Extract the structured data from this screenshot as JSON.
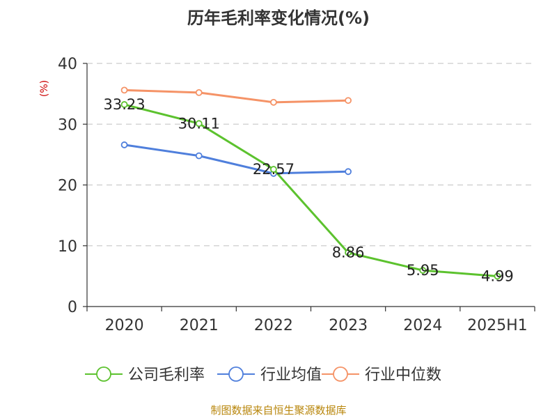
{
  "chart_data": {
    "type": "line",
    "title": "历年毛利率变化情况(%)",
    "ylabel": "(%)",
    "xlabel": "",
    "categories": [
      "2020",
      "2021",
      "2022",
      "2023",
      "2024",
      "2025H1"
    ],
    "ylim": [
      0,
      40
    ],
    "yticks": [
      0,
      10,
      20,
      30,
      40
    ],
    "grid": true,
    "legend_position": "bottom",
    "series": [
      {
        "name": "公司毛利率",
        "color": "#5cc22e",
        "values": [
          33.23,
          30.11,
          22.57,
          8.86,
          5.95,
          4.99
        ],
        "labels": [
          "33.23",
          "30.11",
          "22.57",
          "8.86",
          "5.95",
          "4.99"
        ]
      },
      {
        "name": "行业均值",
        "color": "#4f7fdc",
        "values": [
          26.6,
          24.8,
          21.9,
          22.2,
          null,
          null
        ]
      },
      {
        "name": "行业中位数",
        "color": "#f59367",
        "values": [
          35.6,
          35.2,
          33.6,
          33.9,
          null,
          null
        ]
      }
    ]
  },
  "source": {
    "text": "制图数据来自恒生聚源数据库",
    "color": "#b8860b"
  },
  "colors": {
    "axis": "#333333",
    "grid": "#cccccc",
    "ylabel": "#cc0000"
  }
}
